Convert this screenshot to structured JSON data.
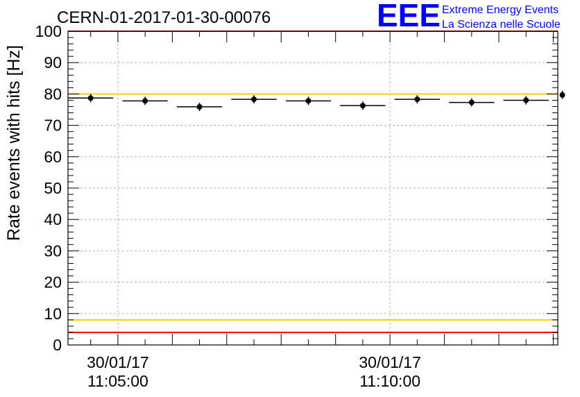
{
  "chart_data": {
    "type": "scatter",
    "title": "CERN-01-2017-01-30-00076",
    "ylabel": "Rate events with hits [Hz]",
    "xlabel": "",
    "xlim": [
      "2017-01-30 11:04:05",
      "2017-01-30 11:13:05"
    ],
    "ylim": [
      0,
      100
    ],
    "y_ticks": [
      0,
      10,
      20,
      30,
      40,
      50,
      60,
      70,
      80,
      90,
      100
    ],
    "x_ticks": [
      {
        "date": "30/01/17",
        "time": "11:05:00"
      },
      {
        "date": "30/01/17",
        "time": "11:10:00"
      }
    ],
    "grid": true,
    "series": [
      {
        "points": [
          {
            "x": "2017-01-30 11:04:30",
            "y": 78.7,
            "x_err_s": 25
          },
          {
            "x": "2017-01-30 11:05:30",
            "y": 77.8,
            "x_err_s": 25
          },
          {
            "x": "2017-01-30 11:06:30",
            "y": 75.9,
            "x_err_s": 25
          },
          {
            "x": "2017-01-30 11:07:30",
            "y": 78.3,
            "x_err_s": 25
          },
          {
            "x": "2017-01-30 11:08:30",
            "y": 77.8,
            "x_err_s": 25
          },
          {
            "x": "2017-01-30 11:09:30",
            "y": 76.3,
            "x_err_s": 25
          },
          {
            "x": "2017-01-30 11:10:30",
            "y": 78.3,
            "x_err_s": 25
          },
          {
            "x": "2017-01-30 11:11:30",
            "y": 77.3,
            "x_err_s": 25
          },
          {
            "x": "2017-01-30 11:12:30",
            "y": 78.0,
            "x_err_s": 25
          },
          {
            "x": "2017-01-30 11:13:10",
            "y": 79.7,
            "x_err_s": 0
          }
        ]
      }
    ],
    "reference_lines": [
      {
        "y": 100,
        "color": "#ff0000"
      },
      {
        "y": 80,
        "color": "#ffcc00"
      },
      {
        "y": 8,
        "color": "#ffcc00"
      },
      {
        "y": 4,
        "color": "#ff0000"
      }
    ]
  },
  "logo": {
    "mark": "EEE",
    "line1": "Extreme Energy Events",
    "line2": "La Scienza nelle Scuole",
    "color": "#0000ff"
  }
}
